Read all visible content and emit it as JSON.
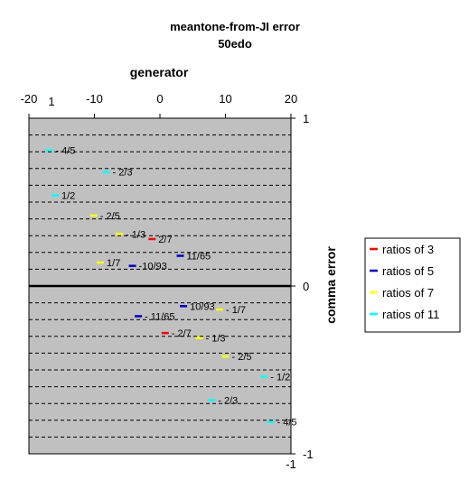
{
  "chart_data": {
    "type": "scatter",
    "title": "meantone-from-JI error",
    "subtitle": "50edo",
    "xlabel": "generator",
    "ylabel": "comma error",
    "xlim": [
      -20,
      20
    ],
    "ylim": [
      -1,
      1
    ],
    "x_ticks": [
      "-20",
      "-10",
      "0",
      "10",
      "20"
    ],
    "y_ticks": [
      "1",
      "0",
      "-1"
    ],
    "extra_labels": [
      "1",
      "-1"
    ],
    "grid": "horizontal dashed",
    "legend_position": "right",
    "series": [
      {
        "name": "ratios of 3",
        "color": "#ff0000",
        "points": [
          {
            "x": -1.2,
            "y": 0.28,
            "label": "2/7"
          },
          {
            "x": 0.8,
            "y": -0.28,
            "label": "- 2/7"
          }
        ]
      },
      {
        "name": "ratios of 5",
        "color": "#0000cc",
        "points": [
          {
            "x": 3.1,
            "y": 0.18,
            "label": "11/65"
          },
          {
            "x": -4.2,
            "y": 0.12,
            "label": "-10/93"
          },
          {
            "x": 3.6,
            "y": -0.12,
            "label": "10/93"
          },
          {
            "x": -3.3,
            "y": -0.18,
            "label": "- 11/65"
          }
        ]
      },
      {
        "name": "ratios of 7",
        "color": "#ffff00",
        "points": [
          {
            "x": -10.1,
            "y": 0.42,
            "label": "- 2/5"
          },
          {
            "x": -6.2,
            "y": 0.31,
            "label": "- 1/3"
          },
          {
            "x": -9.1,
            "y": 0.14,
            "label": "1/7"
          },
          {
            "x": 9.1,
            "y": -0.14,
            "label": "- 1/7"
          },
          {
            "x": 6.0,
            "y": -0.31,
            "label": "- 1/3"
          },
          {
            "x": 10.0,
            "y": -0.42,
            "label": "- 2/5"
          }
        ]
      },
      {
        "name": "ratios of 11",
        "color": "#00ffff",
        "points": [
          {
            "x": -16.9,
            "y": 0.81,
            "label": "- 4/5"
          },
          {
            "x": -8.2,
            "y": 0.68,
            "label": "- 2/3"
          },
          {
            "x": -16.0,
            "y": 0.54,
            "label": "1/2"
          },
          {
            "x": 15.9,
            "y": -0.54,
            "label": "- 1/2"
          },
          {
            "x": 7.9,
            "y": -0.68,
            "label": "- 2/3"
          },
          {
            "x": 16.9,
            "y": -0.81,
            "label": "- 4/5"
          }
        ]
      }
    ]
  }
}
